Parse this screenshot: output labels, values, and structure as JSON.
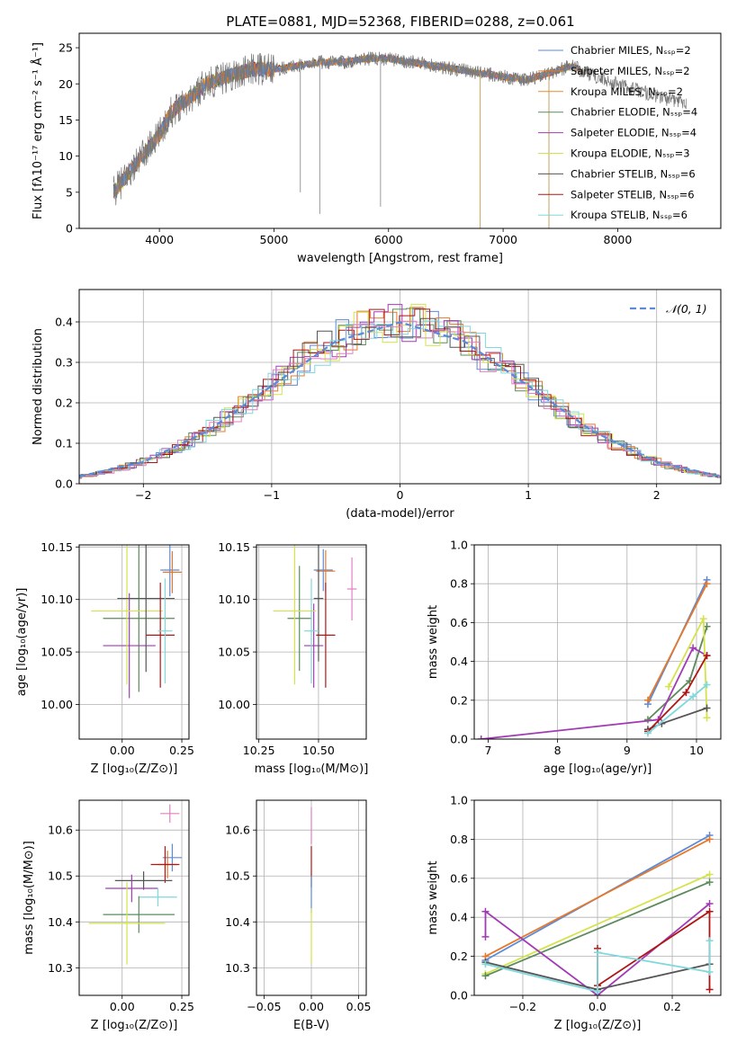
{
  "title": "PLATE=0881, MJD=52368, FIBERID=0288, z=0.061",
  "colors": {
    "Chabrier MILES": "#5b8bd8",
    "Salpeter MILES": "#e7782b",
    "Kroupa MILES": "#e38b2e",
    "Chabrier ELODIE": "#5c8a5c",
    "Salpeter ELODIE": "#a13bb5",
    "Kroupa ELODIE": "#d4e34c",
    "Chabrier STELIB": "#555555",
    "Salpeter STELIB": "#b01515",
    "Kroupa STELIB": "#7fd8dc",
    "extra": "#e080c0",
    "normal_curve": "#5b8bd8"
  },
  "chart_data": [
    {
      "id": "spectrum",
      "type": "line",
      "title": "PLATE=0881, MJD=52368, FIBERID=0288, z=0.061",
      "xlabel": "wavelength [Angstrom, rest frame]",
      "ylabel": "Flux [fλ10⁻¹⁷ erg cm⁻² s⁻¹ Å⁻¹]",
      "xlim": [
        3300,
        8900
      ],
      "ylim": [
        0,
        27
      ],
      "xticks": [
        "4000",
        "5000",
        "6000",
        "7000",
        "8000"
      ],
      "yticks": [
        "0",
        "5",
        "10",
        "15",
        "20",
        "25"
      ],
      "legend_position": "upper-right",
      "series": [
        {
          "name": "Chabrier MILES, Nₛₛₚ=2",
          "color_key": "Chabrier MILES"
        },
        {
          "name": "Salpeter MILES, Nₛₛₚ=2",
          "color_key": "Salpeter MILES"
        },
        {
          "name": "Kroupa MILES, Nₛₛₚ=2",
          "color_key": "Kroupa MILES"
        },
        {
          "name": "Chabrier ELODIE, Nₛₛₚ=4",
          "color_key": "Chabrier ELODIE"
        },
        {
          "name": "Salpeter ELODIE, Nₛₛₚ=4",
          "color_key": "Salpeter ELODIE"
        },
        {
          "name": "Kroupa ELODIE, Nₛₛₚ=3",
          "color_key": "Kroupa ELODIE"
        },
        {
          "name": "Chabrier STELIB, Nₛₛₚ=6",
          "color_key": "Chabrier STELIB"
        },
        {
          "name": "Salpeter STELIB, Nₛₛₚ=6",
          "color_key": "Salpeter STELIB"
        },
        {
          "name": "Kroupa STELIB, Nₛₛₚ=6",
          "color_key": "Kroupa STELIB"
        }
      ],
      "continuum": {
        "x": [
          3600,
          3700,
          3800,
          3900,
          4000,
          4100,
          4200,
          4300,
          4400,
          4600,
          4800,
          5000,
          5200,
          5400,
          5600,
          5800,
          6000,
          6200,
          6400,
          6600,
          6800,
          7000,
          7200,
          7400,
          7600,
          7800,
          8000,
          8200,
          8400,
          8600
        ],
        "y": [
          5,
          7,
          9,
          11,
          13,
          16,
          17.5,
          18.5,
          20,
          21,
          22,
          22,
          22.5,
          23,
          23,
          23.5,
          23.5,
          23,
          22.5,
          22,
          21.5,
          21,
          20.5,
          21.5,
          22.5,
          21,
          20,
          19,
          18,
          17.5
        ]
      },
      "spikes": [
        {
          "x": 5230,
          "y": 5
        },
        {
          "x": 5400,
          "y": 2
        },
        {
          "x": 5930,
          "y": 3
        },
        {
          "x": 6800,
          "y": 0
        },
        {
          "x": 7400,
          "y": 0
        }
      ]
    },
    {
      "id": "residuals",
      "type": "line",
      "xlabel": "(data-model)/error",
      "ylabel": "Normed distribution",
      "xlim": [
        -2.5,
        2.5
      ],
      "ylim": [
        0,
        0.48
      ],
      "xticks": [
        "−2",
        "−1",
        "0",
        "1",
        "2"
      ],
      "yticks": [
        "0.0",
        "0.1",
        "0.2",
        "0.3",
        "0.4"
      ],
      "legend": "𝒩(0, 1)",
      "series": [
        {
          "name": "𝒩(0, 1)",
          "x": [
            -2.5,
            -2,
            -1.5,
            -1,
            -0.5,
            0,
            0.5,
            1,
            1.5,
            2,
            2.5
          ],
          "y": [
            0.018,
            0.054,
            0.13,
            0.242,
            0.352,
            0.399,
            0.352,
            0.242,
            0.13,
            0.054,
            0.018
          ]
        }
      ]
    },
    {
      "id": "age_vs_Z",
      "type": "scatter",
      "xlabel": "Z [log₁₀(Z/Z⊙)]",
      "ylabel": "age  [log₁₀(age/yr)]",
      "xlim": [
        -0.18,
        0.28
      ],
      "ylim": [
        9.967,
        10.152
      ],
      "xticks": [
        "0.00",
        "0.25"
      ],
      "yticks": [
        "10.00",
        "10.05",
        "10.10",
        "10.15"
      ],
      "points": [
        {
          "c": "Chabrier MILES",
          "x": 0.2,
          "xerr": 0.04,
          "y": 10.128,
          "yerr": 0.025
        },
        {
          "c": "Salpeter MILES",
          "x": 0.21,
          "xerr": 0.04,
          "y": 10.126,
          "yerr": 0.02
        },
        {
          "c": "Chabrier ELODIE",
          "x": 0.07,
          "xerr": 0.15,
          "y": 10.082,
          "yerr": 0.07
        },
        {
          "c": "Salpeter ELODIE",
          "x": 0.03,
          "xerr": 0.11,
          "y": 10.056,
          "yerr": 0.05
        },
        {
          "c": "Kroupa ELODIE",
          "x": 0.02,
          "xerr": 0.15,
          "y": 10.089,
          "yerr": 0.07
        },
        {
          "c": "Chabrier STELIB",
          "x": 0.1,
          "xerr": 0.12,
          "y": 10.101,
          "yerr": 0.07
        },
        {
          "c": "Salpeter STELIB",
          "x": 0.16,
          "xerr": 0.06,
          "y": 10.066,
          "yerr": 0.05
        },
        {
          "c": "Kroupa STELIB",
          "x": 0.18,
          "xerr": 0.03,
          "y": 10.07,
          "yerr": 0.05
        }
      ]
    },
    {
      "id": "age_vs_mass",
      "type": "scatter",
      "xlabel": "mass [log₁₀(M/M⊙)]",
      "xlim": [
        10.24,
        10.7
      ],
      "ylim": [
        9.967,
        10.152
      ],
      "xticks": [
        "10.25",
        "10.50"
      ],
      "yticks": [
        "10.00",
        "10.05",
        "10.10",
        "10.15"
      ],
      "points": [
        {
          "c": "Chabrier MILES",
          "x": 10.52,
          "xerr": 0.04,
          "y": 10.128,
          "yerr": 0.02
        },
        {
          "c": "Salpeter MILES",
          "x": 10.53,
          "xerr": 0.04,
          "y": 10.127,
          "yerr": 0.02
        },
        {
          "c": "extra",
          "x": 10.64,
          "xerr": 0.02,
          "y": 10.11,
          "yerr": 0.03
        },
        {
          "c": "Chabrier ELODIE",
          "x": 10.42,
          "xerr": 0.05,
          "y": 10.082,
          "yerr": 0.05
        },
        {
          "c": "Salpeter ELODIE",
          "x": 10.48,
          "xerr": 0.04,
          "y": 10.056,
          "yerr": 0.04
        },
        {
          "c": "Kroupa ELODIE",
          "x": 10.4,
          "xerr": 0.09,
          "y": 10.089,
          "yerr": 0.07
        },
        {
          "c": "Chabrier STELIB",
          "x": 10.5,
          "xerr": 0.02,
          "y": 10.101,
          "yerr": 0.06
        },
        {
          "c": "Salpeter STELIB",
          "x": 10.53,
          "xerr": 0.04,
          "y": 10.066,
          "yerr": 0.05
        },
        {
          "c": "Kroupa STELIB",
          "x": 10.47,
          "xerr": 0.03,
          "y": 10.07,
          "yerr": 0.05
        }
      ]
    },
    {
      "id": "weight_vs_age",
      "type": "line",
      "xlabel": "age  [log₁₀(age/yr)]",
      "ylabel": "mass weight",
      "xlim": [
        6.8,
        10.35
      ],
      "ylim": [
        0,
        1.0
      ],
      "xticks": [
        "7",
        "8",
        "9",
        "10"
      ],
      "yticks": [
        "0.0",
        "0.2",
        "0.4",
        "0.6",
        "0.8",
        "1.0"
      ],
      "series": [
        {
          "c": "Chabrier MILES",
          "x": [
            9.3,
            10.15
          ],
          "y": [
            0.18,
            0.82
          ]
        },
        {
          "c": "Salpeter MILES",
          "x": [
            9.3,
            10.15
          ],
          "y": [
            0.2,
            0.8
          ]
        },
        {
          "c": "Chabrier ELODIE",
          "x": [
            9.3,
            9.9,
            10.15
          ],
          "y": [
            0.1,
            0.3,
            0.58
          ]
        },
        {
          "c": "Salpeter ELODIE",
          "x": [
            6.9,
            9.45,
            9.95,
            10.15
          ],
          "y": [
            0.0,
            0.1,
            0.47,
            0.43
          ]
        },
        {
          "c": "Kroupa ELODIE",
          "x": [
            9.6,
            10.1,
            10.15
          ],
          "y": [
            0.27,
            0.62,
            0.11
          ]
        },
        {
          "c": "Chabrier STELIB",
          "x": [
            9.3,
            9.5,
            10.15
          ],
          "y": [
            0.05,
            0.08,
            0.16
          ]
        },
        {
          "c": "Salpeter STELIB",
          "x": [
            9.3,
            9.85,
            10.15
          ],
          "y": [
            0.04,
            0.24,
            0.43
          ]
        },
        {
          "c": "Kroupa STELIB",
          "x": [
            9.3,
            9.95,
            10.15
          ],
          "y": [
            0.03,
            0.22,
            0.28
          ]
        }
      ]
    },
    {
      "id": "mass_vs_Z",
      "type": "scatter",
      "xlabel": "Z [log₁₀(Z/Z⊙)]",
      "ylabel": "mass [log₁₀(M/M⊙)]",
      "xlim": [
        -0.18,
        0.28
      ],
      "ylim": [
        10.24,
        10.665
      ],
      "xticks": [
        "0.00",
        "0.25"
      ],
      "yticks": [
        "10.3",
        "10.4",
        "10.5",
        "10.6"
      ],
      "points": [
        {
          "c": "extra",
          "x": 0.2,
          "xerr": 0.04,
          "y": 10.636,
          "yerr": 0.02
        },
        {
          "c": "Chabrier MILES",
          "x": 0.21,
          "xerr": 0.04,
          "y": 10.54,
          "yerr": 0.03
        },
        {
          "c": "Salpeter MILES",
          "x": 0.19,
          "xerr": 0.04,
          "y": 10.525,
          "yerr": 0.03
        },
        {
          "c": "Salpeter STELIB",
          "x": 0.18,
          "xerr": 0.06,
          "y": 10.525,
          "yerr": 0.04
        },
        {
          "c": "Chabrier STELIB",
          "x": 0.09,
          "xerr": 0.12,
          "y": 10.49,
          "yerr": 0.02
        },
        {
          "c": "Salpeter ELODIE",
          "x": 0.04,
          "xerr": 0.11,
          "y": 10.473,
          "yerr": 0.03
        },
        {
          "c": "Kroupa STELIB",
          "x": 0.15,
          "xerr": 0.08,
          "y": 10.454,
          "yerr": 0.02
        },
        {
          "c": "Chabrier ELODIE",
          "x": 0.07,
          "xerr": 0.15,
          "y": 10.416,
          "yerr": 0.04
        },
        {
          "c": "Kroupa ELODIE",
          "x": 0.02,
          "xerr": 0.16,
          "y": 10.397,
          "yerr": 0.09
        }
      ]
    },
    {
      "id": "mass_vs_ebv",
      "type": "scatter",
      "xlabel": "E(B-V)",
      "xlim": [
        -0.058,
        0.058
      ],
      "ylim": [
        10.24,
        10.665
      ],
      "xticks": [
        "−0.05",
        "0.00",
        "0.05"
      ],
      "yticks": [
        "10.3",
        "10.4",
        "10.5",
        "10.6"
      ],
      "points": [
        {
          "c": "extra",
          "x": 0.0,
          "y": 10.61,
          "yerr": 0.04
        },
        {
          "c": "Salpeter STELIB",
          "x": 0.0,
          "y": 10.52,
          "yerr": 0.045
        },
        {
          "c": "Chabrier MILES",
          "x": 0.0,
          "y": 10.46,
          "yerr": 0.04
        },
        {
          "c": "Kroupa ELODIE",
          "x": 0.0,
          "y": 10.37,
          "yerr": 0.06
        }
      ]
    },
    {
      "id": "weight_vs_Z",
      "type": "line",
      "xlabel": "Z [log₁₀(Z/Z⊙)]",
      "ylabel": "mass weight",
      "xlim": [
        -0.33,
        0.33
      ],
      "ylim": [
        0,
        1.0
      ],
      "xticks": [
        "−0.2",
        "0.0",
        "0.2"
      ],
      "yticks": [
        "0.0",
        "0.2",
        "0.4",
        "0.6",
        "0.8",
        "1.0"
      ],
      "series": [
        {
          "c": "Chabrier MILES",
          "x": [
            -0.3,
            0.3
          ],
          "y": [
            0.18,
            0.82
          ]
        },
        {
          "c": "Salpeter MILES",
          "x": [
            -0.3,
            0.3
          ],
          "y": [
            0.2,
            0.8
          ]
        },
        {
          "c": "Kroupa ELODIE",
          "x": [
            -0.3,
            0.3
          ],
          "y": [
            0.11,
            0.62
          ]
        },
        {
          "c": "Chabrier ELODIE",
          "x": [
            -0.3,
            0.3
          ],
          "y": [
            0.1,
            0.58
          ]
        },
        {
          "c": "Salpeter ELODIE",
          "x": [
            -0.3,
            -0.3,
            0.0,
            0.3
          ],
          "y": [
            0.3,
            0.43,
            0.0,
            0.47
          ]
        },
        {
          "c": "Salpeter STELIB",
          "x": [
            0.0,
            0.0,
            0.3,
            0.3
          ],
          "y": [
            0.24,
            0.05,
            0.43,
            0.03
          ]
        },
        {
          "c": "Chabrier STELIB",
          "x": [
            -0.3,
            0.0,
            0.3
          ],
          "y": [
            0.17,
            0.03,
            0.16
          ]
        },
        {
          "c": "Kroupa STELIB",
          "x": [
            -0.3,
            0.0,
            0.0,
            0.3,
            0.3
          ],
          "y": [
            0.16,
            0.02,
            0.22,
            0.12,
            0.28
          ]
        }
      ]
    }
  ]
}
